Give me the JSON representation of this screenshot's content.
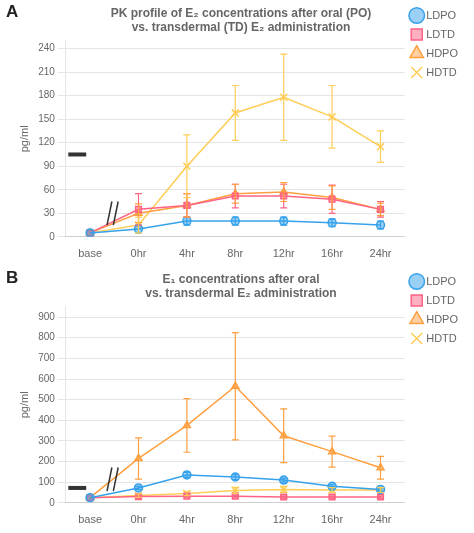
{
  "chart_data": [
    {
      "type": "line",
      "annotation": "A",
      "title": "PK profile of E₂ concentrations after oral (PO)\nvs. transdermal (TD) E₂ administration",
      "ylabel": "pg/ml",
      "categories": [
        "base",
        "0hr",
        "4hr",
        "8hr",
        "12hr",
        "16hr",
        "24hr"
      ],
      "ylim": [
        0,
        250
      ],
      "yticks": [
        0,
        30,
        60,
        90,
        120,
        150,
        180,
        210,
        240
      ],
      "grid": true,
      "legend": "right",
      "baseline_bar": 105,
      "series": [
        {
          "name": "LDPO",
          "marker": "circle",
          "values": [
            5,
            10,
            20,
            20,
            20,
            18,
            15
          ],
          "errors": [
            0,
            5,
            5,
            5,
            5,
            5,
            5
          ]
        },
        {
          "name": "LDTD",
          "marker": "square",
          "values": [
            5,
            35,
            40,
            52,
            52,
            48,
            35
          ],
          "errors": [
            0,
            20,
            15,
            15,
            15,
            18,
            10
          ]
        },
        {
          "name": "HDPO",
          "marker": "triangle",
          "values": [
            5,
            30,
            40,
            55,
            57,
            50,
            35
          ],
          "errors": [
            0,
            12,
            15,
            12,
            12,
            15,
            8
          ]
        },
        {
          "name": "HDTD",
          "marker": "x",
          "values": [
            5,
            15,
            90,
            158,
            178,
            153,
            115
          ],
          "errors": [
            0,
            10,
            40,
            35,
            55,
            40,
            20
          ]
        }
      ]
    },
    {
      "type": "line",
      "annotation": "B",
      "title": "E₁ concentrations after oral\nvs. transdermal E₂ administration",
      "ylabel": "pg/ml",
      "categories": [
        "base",
        "0hr",
        "4hr",
        "8hr",
        "12hr",
        "16hr",
        "24hr"
      ],
      "ylim": [
        0,
        950
      ],
      "yticks": [
        0,
        100,
        200,
        300,
        400,
        500,
        600,
        700,
        800,
        900
      ],
      "grid": true,
      "legend": "right",
      "baseline_bar": 72,
      "series": [
        {
          "name": "LDPO",
          "marker": "circle",
          "values": [
            25,
            72,
            135,
            125,
            110,
            80,
            65
          ],
          "errors": [
            0,
            8,
            12,
            12,
            10,
            10,
            8
          ]
        },
        {
          "name": "LDTD",
          "marker": "square",
          "values": [
            25,
            30,
            32,
            32,
            28,
            28,
            28
          ],
          "errors": [
            0,
            8,
            5,
            5,
            5,
            5,
            5
          ]
        },
        {
          "name": "HDPO",
          "marker": "triangle",
          "values": [
            25,
            215,
            375,
            565,
            325,
            248,
            170
          ],
          "errors": [
            0,
            100,
            130,
            260,
            130,
            75,
            55
          ]
        },
        {
          "name": "HDTD",
          "marker": "x",
          "values": [
            25,
            35,
            45,
            60,
            65,
            62,
            62
          ],
          "errors": [
            0,
            8,
            10,
            15,
            15,
            12,
            12
          ]
        }
      ]
    }
  ]
}
